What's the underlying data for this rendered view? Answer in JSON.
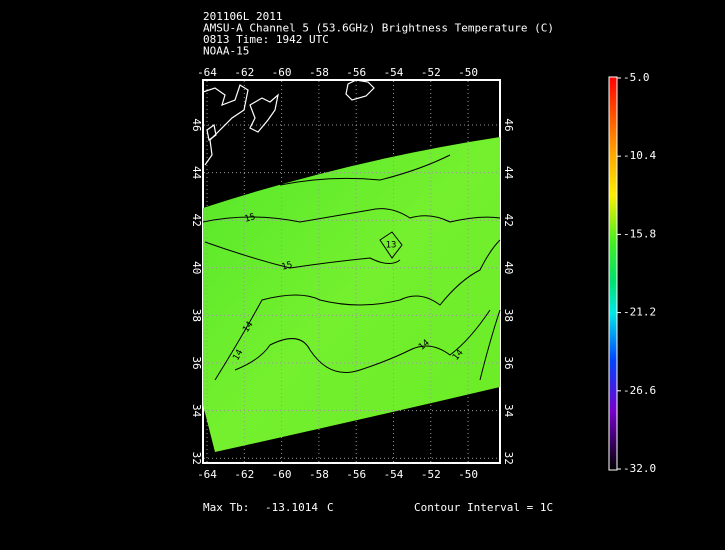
{
  "header": {
    "lines": [
      "201106L 2011",
      "AMSU-A Channel 5 (53.6GHz) Brightness Temperature (C)",
      "0813 Time: 1942 UTC",
      "NOAA-15"
    ]
  },
  "map": {
    "lon_ticks": [
      "-64",
      "-62",
      "-60",
      "-58",
      "-56",
      "-54",
      "-52",
      "-50"
    ],
    "lat_ticks": [
      "46",
      "44",
      "42",
      "40",
      "38",
      "36",
      "34",
      "32"
    ],
    "contour_labels": [
      "15",
      "15",
      "14",
      "14",
      "14",
      "14",
      "13"
    ]
  },
  "colorbar": {
    "labels": [
      "-5.0",
      "-10.4",
      "-15.8",
      "-21.2",
      "-26.6",
      "-32.0"
    ]
  },
  "footer": {
    "max_label": "Max Tb:",
    "max_value": "-13.1014",
    "max_unit": "C",
    "contour_interval": "Contour Interval = 1C"
  }
}
